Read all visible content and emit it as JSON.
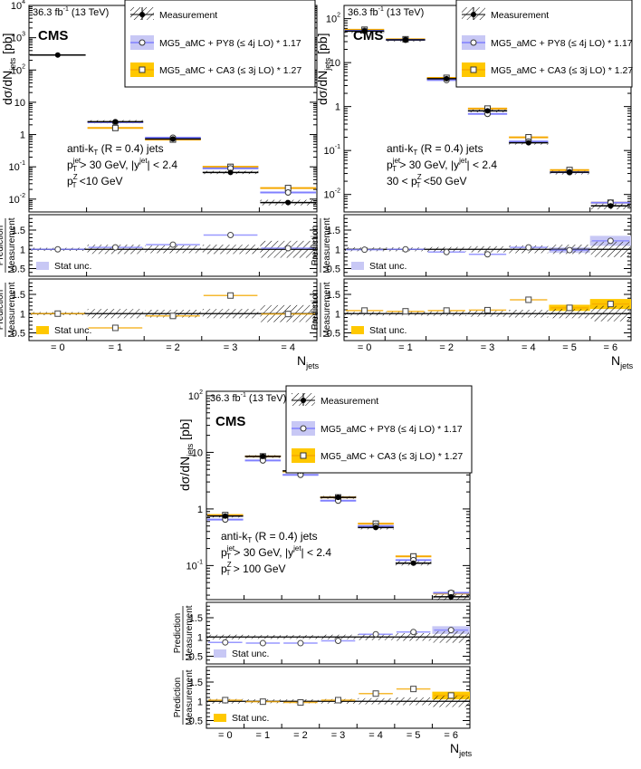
{
  "colors": {
    "pythia": "#8080ff",
    "pythia_band": "#c8c8f5",
    "ca3": "#f5a800",
    "ca3_band": "#ffc800",
    "measurement": "#000000"
  },
  "common": {
    "lumi": "36.3 fb",
    "lumi_sup": "-1",
    "energy": "(13 TeV)",
    "cms": "CMS",
    "ylabel_main": "dσ/dN",
    "ylabel_main_sub": "jets",
    "ylabel_unit": "[pb]",
    "ratio_ylabel_top": "Prediction",
    "ratio_ylabel_bottom": "Measurement",
    "stat_unc": "Stat unc.",
    "xlabel": "N",
    "xlabel_sub": "jets",
    "legend_measurement": "Measurement",
    "cut_line1": "anti-k",
    "cut_line1_sub": "T",
    "cut_line1_rest": " (R = 0.4) jets",
    "cut_line2_a": "p",
    "cut_line2_sup": "jet",
    "cut_line2_sub": "T",
    "cut_line2_b": " > 30 GeV, |y",
    "cut_line2_sup2": "jet",
    "cut_line2_c": "| < 2.4"
  },
  "chart_data": [
    {
      "type": "scatter",
      "panel": "ptZ_lt_10",
      "legend": [
        "Measurement",
        "MG5_aMC + PY8 (≤ 4j LO) * 1.17",
        "MG5_aMC + CA3 (≤ 3j LO) * 1.27"
      ],
      "cut_line3_pre": "",
      "cut_line3_post": " <10 GeV",
      "categories": [
        "= 0",
        "= 1",
        "= 2",
        "= 3",
        "= 4"
      ],
      "x": [
        0,
        1,
        2,
        3,
        4
      ],
      "ylim": [
        0.004,
        10000
      ],
      "yticks": [
        {
          "v": 0.01,
          "l": "10",
          "e": "-2"
        },
        {
          "v": 0.1,
          "l": "10",
          "e": "-1"
        },
        {
          "v": 1,
          "l": "1",
          "e": ""
        },
        {
          "v": 10,
          "l": "10",
          "e": ""
        },
        {
          "v": 100,
          "l": "10",
          "e": "2"
        },
        {
          "v": 1000,
          "l": "10",
          "e": "3"
        },
        {
          "v": 10000,
          "l": "10",
          "e": "4"
        }
      ],
      "measurement": [
        290,
        2.5,
        0.73,
        0.067,
        0.0078
      ],
      "meas_unc": [
        0,
        0.12,
        0.1,
        0.12,
        0.22
      ],
      "py8": [
        null,
        2.4,
        0.8,
        0.09,
        0.016
      ],
      "ca3": [
        null,
        1.6,
        0.7,
        0.1,
        0.022
      ],
      "ratio_py8": [
        1.0,
        1.05,
        1.12,
        1.37,
        1.03
      ],
      "ratio_ca3": [
        1.0,
        0.63,
        0.94,
        1.47,
        0.99
      ],
      "ratio_ylim": [
        0.3,
        1.9
      ],
      "ratio_yticks": [
        0.5,
        1,
        1.5
      ],
      "ratio_py8_band": [
        0,
        0,
        0,
        0,
        0
      ],
      "ratio_ca3_band": [
        0,
        0,
        0,
        0,
        0
      ]
    },
    {
      "type": "scatter",
      "panel": "ptZ_30_50",
      "legend": [
        "Measurement",
        "MG5_aMC + PY8 (≤ 4j LO) * 1.17",
        "MG5_aMC + CA3 (≤ 3j LO) * 1.27"
      ],
      "cut_line3_pre": "30 < ",
      "cut_line3_post": " <50 GeV",
      "categories": [
        "= 0",
        "= 1",
        "= 2",
        "= 3",
        "= 4",
        "= 5",
        "= 6"
      ],
      "x": [
        0,
        1,
        2,
        3,
        4,
        5,
        6
      ],
      "ylim": [
        0.004,
        200
      ],
      "yticks": [
        {
          "v": 0.01,
          "l": "10",
          "e": "-2"
        },
        {
          "v": 0.1,
          "l": "10",
          "e": "-1"
        },
        {
          "v": 1,
          "l": "1",
          "e": ""
        },
        {
          "v": 10,
          "l": "10",
          "e": ""
        },
        {
          "v": 100,
          "l": "10",
          "e": "2"
        }
      ],
      "measurement": [
        52,
        33,
        4.3,
        0.8,
        0.15,
        0.032,
        0.0055
      ],
      "meas_unc": [
        0.05,
        0.05,
        0.06,
        0.08,
        0.1,
        0.12,
        0.2
      ],
      "py8": [
        53,
        33,
        4.0,
        0.68,
        0.16,
        0.032,
        0.0065
      ],
      "ca3": [
        56,
        34,
        4.5,
        0.9,
        0.2,
        0.036,
        0.0065
      ],
      "ratio_py8": [
        0.99,
        1.0,
        0.93,
        0.87,
        1.05,
        0.98,
        1.22
      ],
      "ratio_ca3": [
        1.08,
        1.06,
        1.08,
        1.09,
        1.36,
        1.15,
        1.25
      ],
      "ratio_ylim": [
        0.3,
        1.9
      ],
      "ratio_yticks": [
        0.5,
        1,
        1.5
      ],
      "ratio_py8_band": [
        0,
        0,
        0,
        0,
        0,
        0.07,
        0.13
      ],
      "ratio_ca3_band": [
        0,
        0,
        0,
        0,
        0,
        0.08,
        0.13
      ]
    },
    {
      "type": "scatter",
      "panel": "ptZ_gt_100",
      "legend": [
        "Measurement",
        "MG5_aMC + PY8 (≤ 4j LO) * 1.17",
        "MG5_aMC + CA3 (≤ 3j LO) * 1.27"
      ],
      "cut_line3_pre": "",
      "cut_line3_post": " >  100 GeV",
      "categories": [
        "= 0",
        "= 1",
        "= 2",
        "= 3",
        "= 4",
        "= 5",
        "= 6"
      ],
      "x": [
        0,
        1,
        2,
        3,
        4,
        5,
        6
      ],
      "ylim": [
        0.025,
        120
      ],
      "yticks": [
        {
          "v": 0.1,
          "l": "10",
          "e": "-1"
        },
        {
          "v": 1,
          "l": "1",
          "e": ""
        },
        {
          "v": 10,
          "l": "10",
          "e": ""
        },
        {
          "v": 100,
          "l": "10",
          "e": "2"
        }
      ],
      "measurement": [
        0.75,
        8.5,
        4.7,
        1.6,
        0.47,
        0.11,
        0.028
      ],
      "meas_unc": [
        0.06,
        0.05,
        0.05,
        0.06,
        0.08,
        0.1,
        0.15
      ],
      "py8": [
        0.65,
        7.2,
        4.0,
        1.4,
        0.5,
        0.125,
        0.033
      ],
      "ca3": [
        0.78,
        8.5,
        4.6,
        1.6,
        0.55,
        0.145,
        0.032
      ],
      "ratio_py8": [
        0.86,
        0.84,
        0.84,
        0.9,
        1.07,
        1.13,
        1.18
      ],
      "ratio_ca3": [
        1.03,
        0.99,
        0.97,
        1.03,
        1.2,
        1.32,
        1.15
      ],
      "ratio_ylim": [
        0.3,
        1.9
      ],
      "ratio_yticks": [
        0.5,
        1,
        1.5
      ],
      "ratio_py8_band": [
        0,
        0,
        0,
        0,
        0,
        0,
        0.1
      ],
      "ratio_ca3_band": [
        0,
        0,
        0,
        0,
        0,
        0,
        0.1
      ]
    }
  ]
}
